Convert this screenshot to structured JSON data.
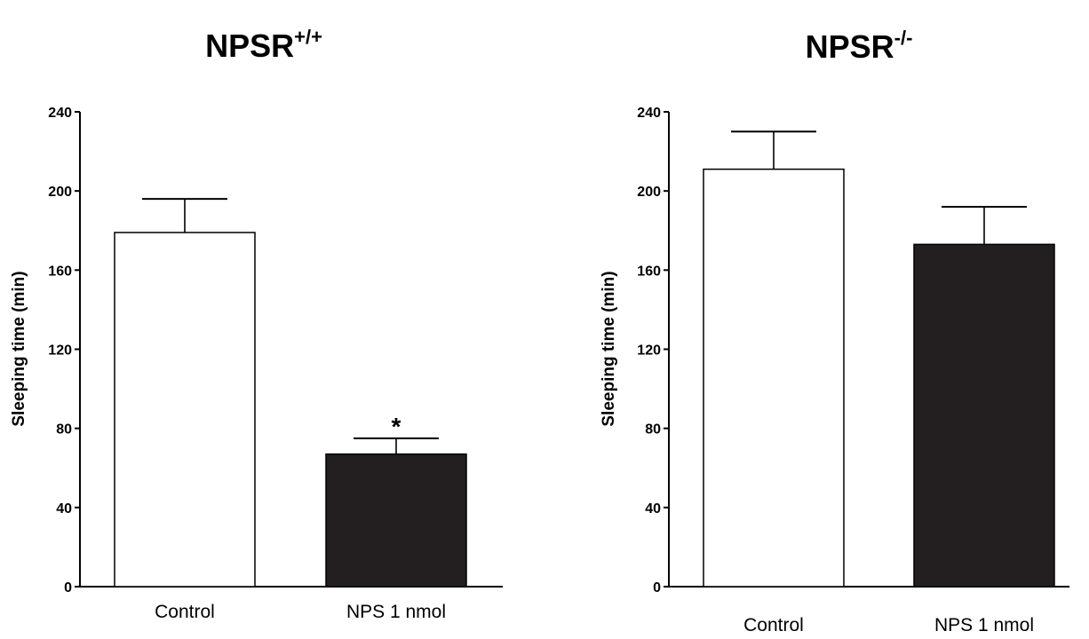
{
  "chart_data": [
    {
      "type": "bar",
      "title": {
        "base": "NPSR",
        "sup": "+/+"
      },
      "ylabel": "Sleeping time (min)",
      "xlabel": "",
      "ylim": [
        0,
        240
      ],
      "yticks": [
        "0",
        "40",
        "80",
        "120",
        "160",
        "200",
        "240"
      ],
      "categories": [
        "Control",
        "NPS 1 nmol"
      ],
      "values": [
        179,
        67
      ],
      "errors": [
        17,
        8
      ],
      "bar_colors": [
        "#ffffff",
        "#231f20"
      ],
      "annotations": [
        "",
        "*"
      ]
    },
    {
      "type": "bar",
      "title": {
        "base": "NPSR",
        "sup": "-/-"
      },
      "ylabel": "Sleeping time (min)",
      "xlabel": "",
      "ylim": [
        0,
        240
      ],
      "yticks": [
        "0",
        "40",
        "80",
        "120",
        "160",
        "200",
        "240"
      ],
      "categories": [
        "Control",
        "NPS 1 nmol"
      ],
      "values": [
        211,
        173
      ],
      "errors": [
        19,
        19
      ],
      "bar_colors": [
        "#ffffff",
        "#231f20"
      ],
      "annotations": [
        "",
        ""
      ]
    }
  ]
}
